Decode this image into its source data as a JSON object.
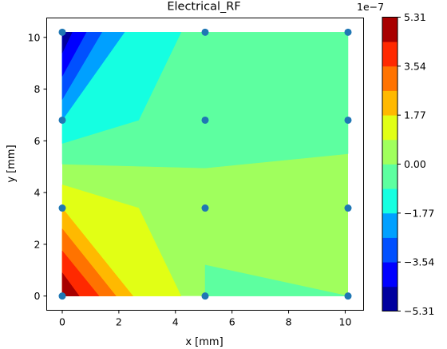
{
  "chart_data": {
    "type": "contourf",
    "title": "Electrical_RF",
    "xlabel": "x [mm]",
    "ylabel": "y [mm]",
    "xlim": [
      -0.55,
      10.65
    ],
    "ylim": [
      -0.55,
      10.75
    ],
    "xticks": [
      "0",
      "2",
      "4",
      "6",
      "8",
      "10"
    ],
    "yticks": [
      "0",
      "2",
      "4",
      "6",
      "8",
      "10"
    ],
    "points": [
      {
        "x": 0,
        "y": 0
      },
      {
        "x": 0,
        "y": 3.4
      },
      {
        "x": 0,
        "y": 6.8
      },
      {
        "x": 0,
        "y": 10.2
      },
      {
        "x": 5.05,
        "y": 0
      },
      {
        "x": 5.05,
        "y": 3.4
      },
      {
        "x": 5.05,
        "y": 6.8
      },
      {
        "x": 5.05,
        "y": 10.2
      },
      {
        "x": 10.1,
        "y": 0
      },
      {
        "x": 10.1,
        "y": 3.4
      },
      {
        "x": 10.1,
        "y": 6.8
      },
      {
        "x": 10.1,
        "y": 10.2
      }
    ],
    "colorbar": {
      "exponent_label": "1e−7",
      "tick_labels": [
        "−5.31",
        "−3.54",
        "−1.77",
        "0.00",
        "1.77",
        "3.54",
        "5.31"
      ],
      "levels": [
        -5.31,
        -4.425,
        -3.54,
        -2.655,
        -1.77,
        -0.885,
        0.0,
        0.885,
        1.77,
        2.655,
        3.54,
        4.425,
        5.31
      ],
      "colors": [
        "#00009f",
        "#0000ff",
        "#0050ff",
        "#00a0ff",
        "#15ffe1",
        "#5dffa0",
        "#a0ff5d",
        "#e1ff15",
        "#ffb900",
        "#ff7300",
        "#ff2900",
        "#a80000"
      ]
    },
    "regions": [
      {
        "level": 6,
        "color": "#5dffa0",
        "poly": [
          [
            0,
            5.1
          ],
          [
            5.05,
            4.95
          ],
          [
            10.1,
            5.5
          ],
          [
            10.1,
            10.2
          ],
          [
            0,
            10.2
          ]
        ]
      },
      {
        "level": 6,
        "color": "#5dffa0",
        "poly": [
          [
            5.05,
            1.2
          ],
          [
            10.1,
            0
          ],
          [
            10.1,
            0
          ],
          [
            5.05,
            0
          ]
        ]
      },
      {
        "level": 4,
        "color": "#15ffe1",
        "poly": [
          [
            0,
            5.9
          ],
          [
            2.7,
            6.8
          ],
          [
            4.2,
            10.2
          ],
          [
            0,
            10.2
          ]
        ]
      },
      {
        "level": 3,
        "color": "#00a0ff",
        "poly": [
          [
            0,
            6.8
          ],
          [
            2.2,
            10.2
          ],
          [
            0,
            10.2
          ]
        ]
      },
      {
        "level": 2,
        "color": "#0050ff",
        "poly": [
          [
            0,
            7.6
          ],
          [
            1.4,
            10.2
          ],
          [
            0,
            10.2
          ]
        ]
      },
      {
        "level": 1,
        "color": "#0000ff",
        "poly": [
          [
            0,
            8.5
          ],
          [
            0.85,
            10.2
          ],
          [
            0,
            10.2
          ]
        ]
      },
      {
        "level": 0,
        "color": "#00009f",
        "poly": [
          [
            0,
            9.4
          ],
          [
            0.35,
            10.2
          ],
          [
            0,
            10.2
          ]
        ]
      },
      {
        "level": 7,
        "color": "#e1ff15",
        "poly": [
          [
            0,
            4.3
          ],
          [
            2.7,
            3.4
          ],
          [
            4.2,
            0
          ],
          [
            0,
            0
          ]
        ]
      },
      {
        "level": 8,
        "color": "#ffb900",
        "poly": [
          [
            0,
            3.4
          ],
          [
            2.5,
            0
          ],
          [
            0,
            0
          ]
        ]
      },
      {
        "level": 9,
        "color": "#ff7300",
        "poly": [
          [
            0,
            2.6
          ],
          [
            1.9,
            0
          ],
          [
            0,
            0
          ]
        ]
      },
      {
        "level": 10,
        "color": "#ff2900",
        "poly": [
          [
            0,
            1.75
          ],
          [
            1.3,
            0
          ],
          [
            0,
            0
          ]
        ]
      },
      {
        "level": 11,
        "color": "#a80000",
        "poly": [
          [
            0,
            0.9
          ],
          [
            0.6,
            0
          ],
          [
            0,
            0
          ]
        ]
      }
    ],
    "background_color": "#a0ff5d",
    "point_color": "#1f77b4"
  }
}
